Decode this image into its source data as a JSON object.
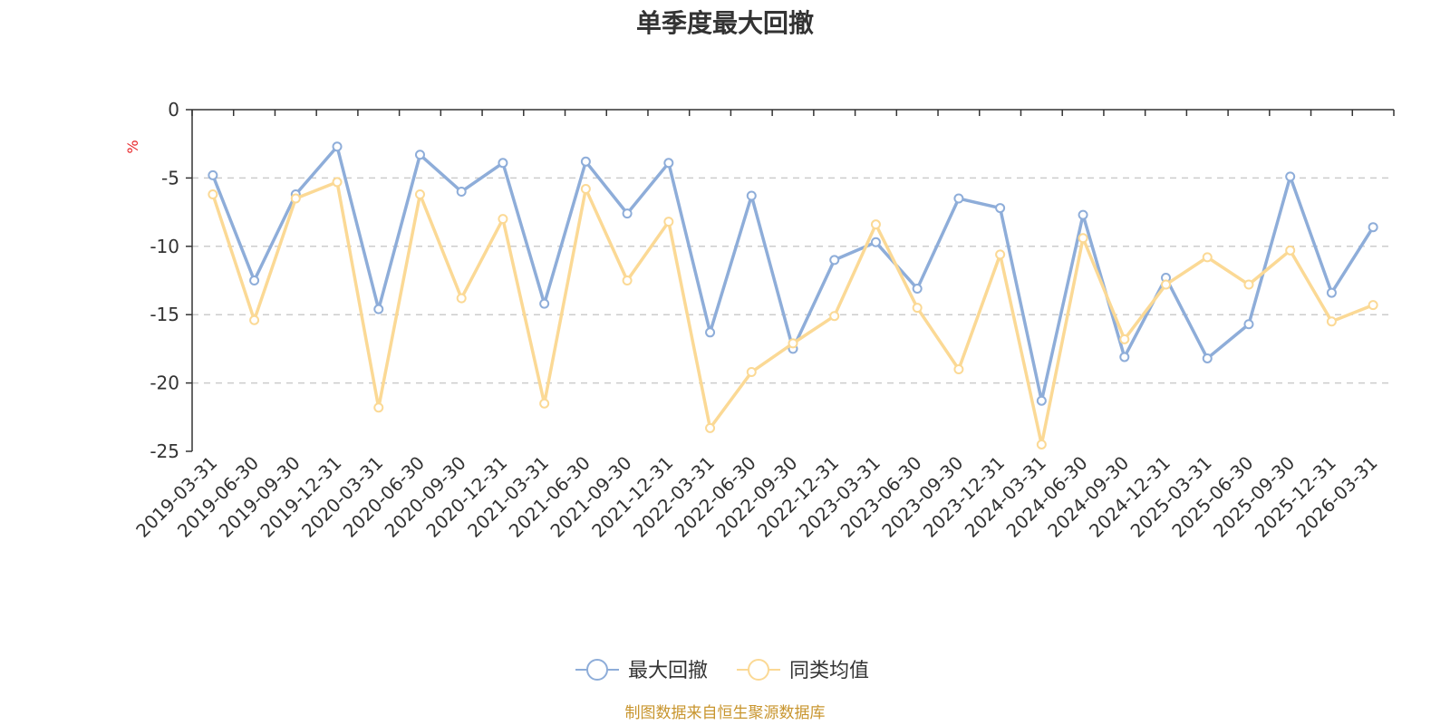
{
  "chart_data": {
    "type": "line",
    "title": "单季度最大回撤",
    "ylabel": "%",
    "ylim": [
      -25,
      0
    ],
    "yticks": [
      0,
      -5,
      -10,
      -15,
      -20,
      -25
    ],
    "grid": true,
    "legend_position": "bottom-center",
    "x": [
      "2019-03-31",
      "2019-06-30",
      "2019-09-30",
      "2019-12-31",
      "2020-03-31",
      "2020-06-30",
      "2020-09-30",
      "2020-12-31",
      "2021-03-31",
      "2021-06-30",
      "2021-09-30",
      "2021-12-31",
      "2022-03-31",
      "2022-06-30",
      "2022-09-30",
      "2022-12-31",
      "2023-03-31",
      "2023-06-30",
      "2023-09-30",
      "2023-12-31",
      "2024-03-31",
      "2024-06-30",
      "2024-09-30",
      "2024-12-31",
      "2025-03-31",
      "2025-06-30",
      "2025-09-30",
      "2025-12-31",
      "2026-03-31"
    ],
    "series": [
      {
        "name": "最大回撤",
        "color": "#8eadd9",
        "values": [
          -4.8,
          -12.5,
          -6.2,
          -2.7,
          -14.6,
          -3.3,
          -6.0,
          -3.9,
          -14.2,
          -3.8,
          -7.6,
          -3.9,
          -16.3,
          -6.3,
          -17.5,
          -11.0,
          -9.7,
          -13.1,
          -6.5,
          -7.2,
          -21.3,
          -7.7,
          -18.1,
          -12.3,
          -18.2,
          -15.7,
          -4.9,
          -13.4,
          -8.6
        ]
      },
      {
        "name": "同类均值",
        "color": "#fbd995",
        "values": [
          -6.2,
          -15.4,
          -6.5,
          -5.3,
          -21.8,
          -6.2,
          -13.8,
          -8.0,
          -21.5,
          -5.8,
          -12.5,
          -8.2,
          -23.3,
          -19.2,
          -17.1,
          -15.1,
          -8.4,
          -14.5,
          -19.0,
          -10.6,
          -24.5,
          -9.4,
          -16.8,
          -12.8,
          -10.8,
          -12.8,
          -10.3,
          -15.5,
          -14.3
        ]
      }
    ]
  },
  "footer": {
    "source": "制图数据来自恒生聚源数据库"
  }
}
